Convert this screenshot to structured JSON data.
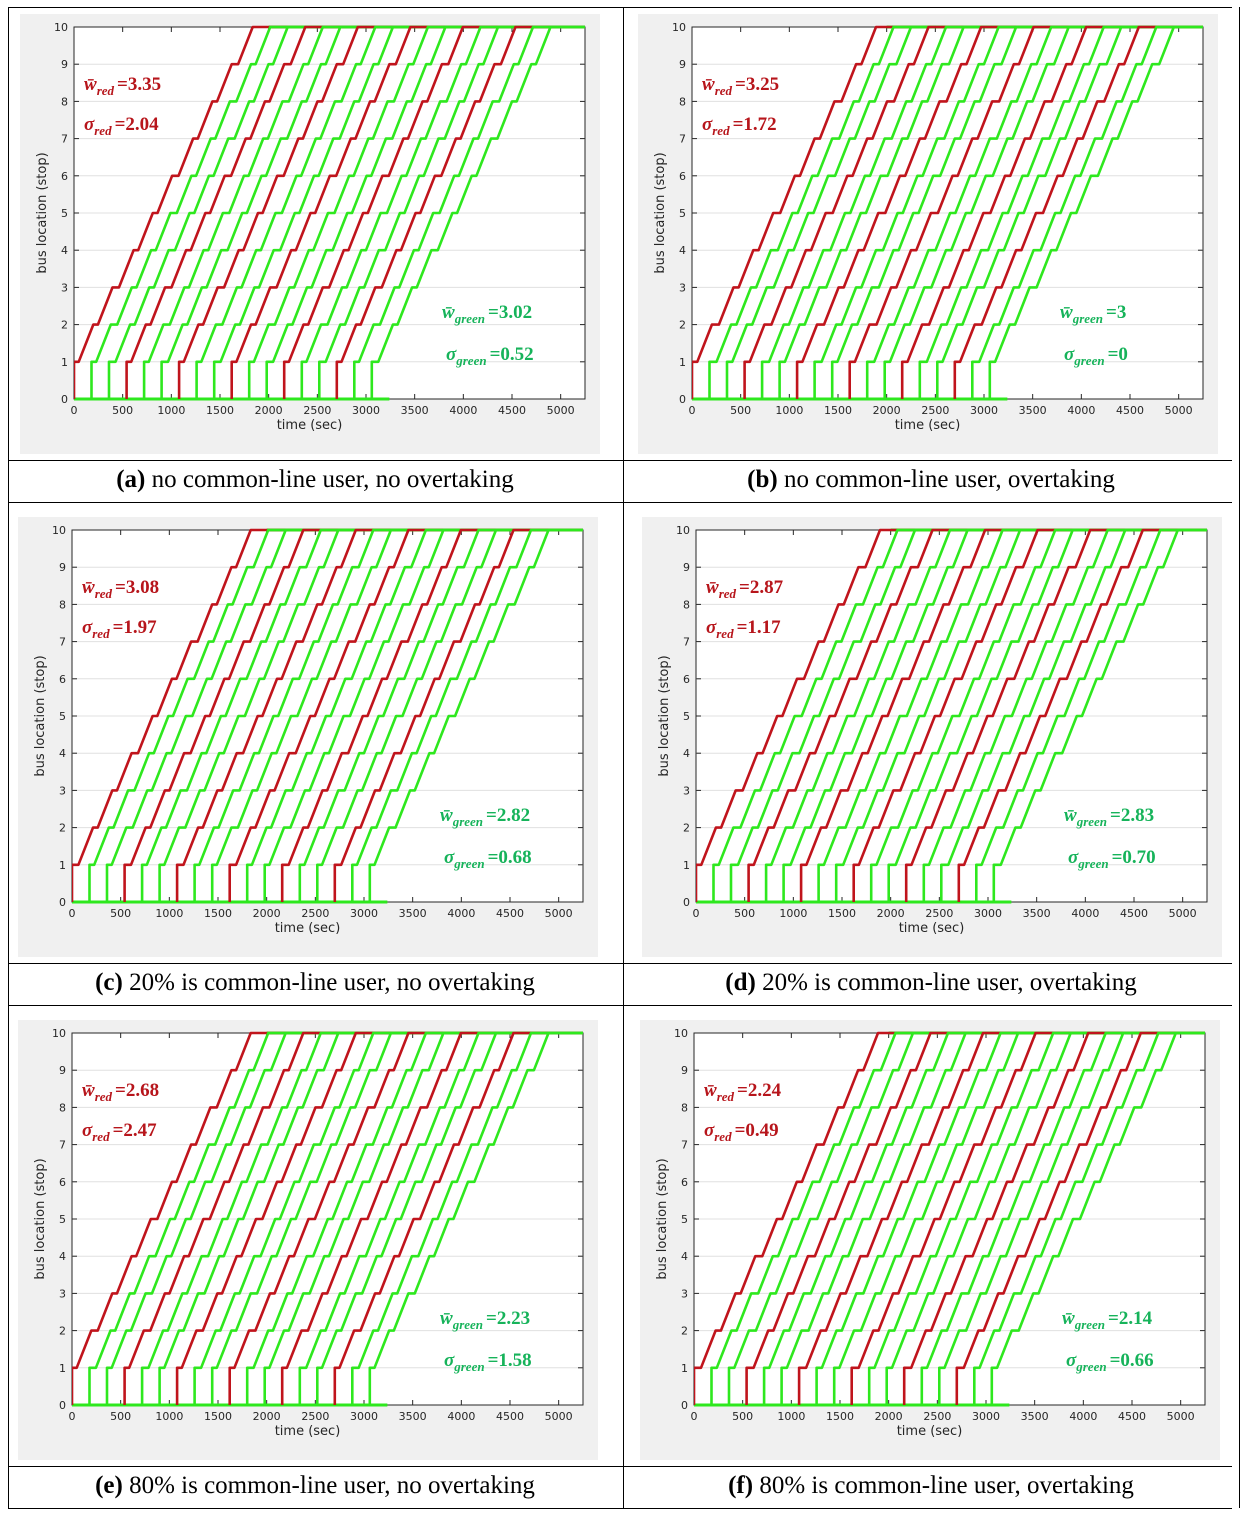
{
  "colors": {
    "red": "#c0141c",
    "green": "#2ee81e",
    "red_text": "#b7151b",
    "green_text": "#16b35a"
  },
  "axis": {
    "xlabel": "time (sec)",
    "ylabel": "bus location (stop)",
    "xticks": [
      "0",
      "500",
      "1000",
      "1500",
      "2000",
      "2500",
      "3000",
      "3500",
      "4000",
      "4500",
      "5000"
    ],
    "yticks": [
      "0",
      "1",
      "2",
      "3",
      "4",
      "5",
      "6",
      "7",
      "8",
      "9",
      "10"
    ]
  },
  "chart_data": [
    {
      "type": "line",
      "panel": "a",
      "title": "",
      "xlabel": "time (sec)",
      "ylabel": "bus location (stop)",
      "xlim": [
        0,
        5250
      ],
      "ylim": [
        0,
        10
      ],
      "grid": "y-major",
      "series": [],
      "first_dispatch": 180,
      "dispatch_headway": 180,
      "n_buses": 18,
      "annotations": {
        "w_red": "=3.35",
        "s_red": "=2.04",
        "w_green": "=3.02",
        "s_green": "=0.52"
      },
      "caption": {
        "letter": "(a)",
        "text": "no common-line user, no overtaking"
      }
    },
    {
      "type": "line",
      "panel": "b",
      "title": "",
      "xlabel": "time (sec)",
      "ylabel": "bus location (stop)",
      "xlim": [
        0,
        5250
      ],
      "ylim": [
        0,
        10
      ],
      "grid": "y-major",
      "series": [],
      "first_dispatch": 180,
      "dispatch_headway": 180,
      "n_buses": 18,
      "annotations": {
        "w_red": "=3.25",
        "s_red": "=1.72",
        "w_green": "=3",
        "s_green": "=0"
      },
      "caption": {
        "letter": "(b)",
        "text": "no common-line user, overtaking"
      }
    },
    {
      "type": "line",
      "panel": "c",
      "title": "",
      "xlabel": "time (sec)",
      "ylabel": "bus location (stop)",
      "xlim": [
        0,
        5250
      ],
      "ylim": [
        0,
        10
      ],
      "grid": "y-major",
      "series": [],
      "first_dispatch": 180,
      "dispatch_headway": 180,
      "n_buses": 18,
      "annotations": {
        "w_red": "=3.08",
        "s_red": "=1.97",
        "w_green": "=2.82",
        "s_green": "=0.68"
      },
      "caption": {
        "letter": "(c)",
        "text": "20% is common-line user, no overtaking"
      }
    },
    {
      "type": "line",
      "panel": "d",
      "title": "",
      "xlabel": "time (sec)",
      "ylabel": "bus location (stop)",
      "xlim": [
        0,
        5250
      ],
      "ylim": [
        0,
        10
      ],
      "grid": "y-major",
      "series": [],
      "first_dispatch": 180,
      "dispatch_headway": 180,
      "n_buses": 18,
      "annotations": {
        "w_red": "=2.87",
        "s_red": "=1.17",
        "w_green": "=2.83",
        "s_green": "=0.70"
      },
      "caption": {
        "letter": "(d)",
        "text": "20% is common-line user, overtaking"
      }
    },
    {
      "type": "line",
      "panel": "e",
      "title": "",
      "xlabel": "time (sec)",
      "ylabel": "bus location (stop)",
      "xlim": [
        0,
        5250
      ],
      "ylim": [
        0,
        10
      ],
      "grid": "y-major",
      "series": [],
      "first_dispatch": 180,
      "dispatch_headway": 180,
      "n_buses": 18,
      "annotations": {
        "w_red": "=2.68",
        "s_red": "=2.47",
        "w_green": "=2.23",
        "s_green": "=1.58"
      },
      "caption": {
        "letter": "(e)",
        "text": "80% is common-line user, no overtaking"
      }
    },
    {
      "type": "line",
      "panel": "f",
      "title": "",
      "xlabel": "time (sec)",
      "ylabel": "bus location (stop)",
      "xlim": [
        0,
        5250
      ],
      "ylim": [
        0,
        10
      ],
      "grid": "y-major",
      "series": [],
      "first_dispatch": 180,
      "dispatch_headway": 180,
      "n_buses": 18,
      "annotations": {
        "w_red": "=2.24",
        "s_red": "=0.49",
        "w_green": "=2.14",
        "s_green": "=0.66"
      },
      "caption": {
        "letter": "(f)",
        "text": "80% is common-line user, overtaking"
      }
    }
  ]
}
